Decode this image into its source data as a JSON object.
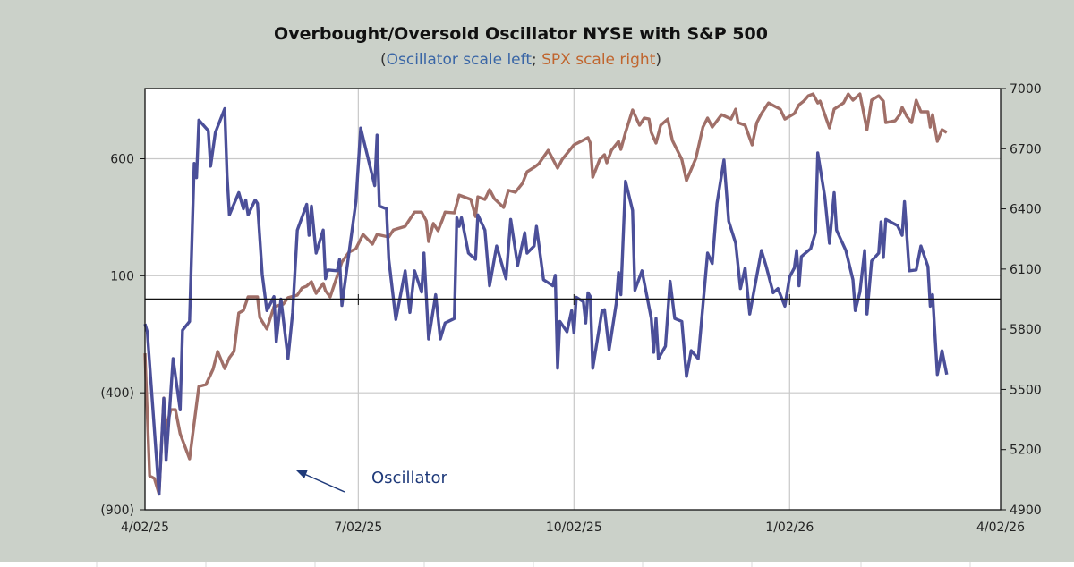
{
  "chart_data": {
    "type": "line",
    "title": "Overbought/Oversold Oscillator NYSE with S&P 500",
    "subtitle": {
      "open": "(",
      "left_part": "Oscillator scale left",
      "sep": "; ",
      "right_part": "SPX scale right",
      "close": ")"
    },
    "x_unit": "days since 4/02/25",
    "xlim": [
      0,
      365
    ],
    "x_ticks": [
      {
        "label": "4/02/25",
        "day": 0
      },
      {
        "label": "7/02/25",
        "day": 91
      },
      {
        "label": "10/02/25",
        "day": 183
      },
      {
        "label": "1/02/26",
        "day": 275
      },
      {
        "label": "4/02/26",
        "day": 365
      }
    ],
    "y_left": {
      "range": [
        -900,
        900
      ],
      "ticks": [
        600,
        100,
        -400,
        -900
      ],
      "tick_labels": [
        "600",
        "100",
        "(400)",
        "(900)"
      ],
      "zero_line": true
    },
    "y_right": {
      "range": [
        4900,
        7000
      ],
      "ticks": [
        7000,
        6700,
        6400,
        6100,
        5800,
        5500,
        5200,
        4900
      ],
      "tick_labels": [
        "7000",
        "6700",
        "6400",
        "6100",
        "5800",
        "5500",
        "5200",
        "4900"
      ]
    },
    "grid": true,
    "annotation": {
      "text": "Oscillator",
      "points_to": "oscillator series"
    },
    "series": [
      {
        "name": "Oscillator",
        "axis": "left",
        "color": "#4b4f99",
        "points": [
          [
            0,
            -106
          ],
          [
            1,
            -140
          ],
          [
            6,
            -833
          ],
          [
            8,
            -424
          ],
          [
            9,
            -689
          ],
          [
            12,
            -254
          ],
          [
            15,
            -473
          ],
          [
            16,
            -133
          ],
          [
            19,
            -95
          ],
          [
            21,
            580
          ],
          [
            22,
            519
          ],
          [
            23,
            765
          ],
          [
            27,
            720
          ],
          [
            28,
            568
          ],
          [
            30,
            712
          ],
          [
            34,
            814
          ],
          [
            35,
            530
          ],
          [
            36,
            360
          ],
          [
            40,
            455
          ],
          [
            42,
            386
          ],
          [
            43,
            424
          ],
          [
            44,
            360
          ],
          [
            47,
            424
          ],
          [
            48,
            409
          ],
          [
            50,
            106
          ],
          [
            52,
            -49
          ],
          [
            55,
            11
          ],
          [
            56,
            -182
          ],
          [
            58,
            0
          ],
          [
            61,
            -254
          ],
          [
            63,
            -57
          ],
          [
            65,
            295
          ],
          [
            69,
            405
          ],
          [
            70,
            273
          ],
          [
            71,
            398
          ],
          [
            73,
            197
          ],
          [
            76,
            295
          ],
          [
            77,
            87
          ],
          [
            78,
            125
          ],
          [
            82,
            121
          ],
          [
            83,
            170
          ],
          [
            84,
            -27
          ],
          [
            90,
            417
          ],
          [
            92,
            731
          ],
          [
            98,
            485
          ],
          [
            99,
            701
          ],
          [
            100,
            398
          ],
          [
            103,
            386
          ],
          [
            104,
            170
          ],
          [
            107,
            -87
          ],
          [
            111,
            121
          ],
          [
            113,
            -57
          ],
          [
            115,
            121
          ],
          [
            118,
            30
          ],
          [
            119,
            197
          ],
          [
            121,
            -170
          ],
          [
            124,
            19
          ],
          [
            126,
            -170
          ],
          [
            128,
            -102
          ],
          [
            132,
            -83
          ],
          [
            133,
            348
          ],
          [
            134,
            311
          ],
          [
            135,
            348
          ],
          [
            138,
            197
          ],
          [
            141,
            170
          ],
          [
            142,
            360
          ],
          [
            145,
            295
          ],
          [
            147,
            57
          ],
          [
            150,
            227
          ],
          [
            154,
            87
          ],
          [
            156,
            341
          ],
          [
            159,
            144
          ],
          [
            162,
            284
          ],
          [
            163,
            197
          ],
          [
            166,
            227
          ],
          [
            167,
            311
          ],
          [
            170,
            83
          ],
          [
            174,
            57
          ],
          [
            175,
            102
          ],
          [
            176,
            -295
          ],
          [
            177,
            -95
          ],
          [
            180,
            -140
          ],
          [
            182,
            -49
          ],
          [
            183,
            -144
          ],
          [
            184,
            8
          ],
          [
            187,
            -11
          ],
          [
            188,
            -102
          ],
          [
            189,
            27
          ],
          [
            190,
            11
          ],
          [
            191,
            -295
          ],
          [
            195,
            -49
          ],
          [
            196,
            -45
          ],
          [
            198,
            -216
          ],
          [
            201,
            -19
          ],
          [
            202,
            114
          ],
          [
            203,
            19
          ],
          [
            205,
            504
          ],
          [
            208,
            379
          ],
          [
            209,
            38
          ],
          [
            212,
            121
          ],
          [
            216,
            -83
          ],
          [
            217,
            -227
          ],
          [
            218,
            -83
          ],
          [
            219,
            -254
          ],
          [
            222,
            -201
          ],
          [
            224,
            76
          ],
          [
            226,
            -83
          ],
          [
            229,
            -95
          ],
          [
            231,
            -330
          ],
          [
            233,
            -220
          ],
          [
            236,
            -254
          ],
          [
            240,
            197
          ],
          [
            242,
            152
          ],
          [
            244,
            409
          ],
          [
            247,
            595
          ],
          [
            249,
            333
          ],
          [
            252,
            239
          ],
          [
            254,
            45
          ],
          [
            256,
            133
          ],
          [
            258,
            -64
          ],
          [
            263,
            208
          ],
          [
            265,
            140
          ],
          [
            268,
            27
          ],
          [
            270,
            45
          ],
          [
            273,
            -30
          ],
          [
            275,
            95
          ],
          [
            277,
            133
          ],
          [
            278,
            208
          ],
          [
            279,
            57
          ],
          [
            280,
            182
          ],
          [
            284,
            216
          ],
          [
            286,
            284
          ],
          [
            287,
            625
          ],
          [
            290,
            436
          ],
          [
            292,
            239
          ],
          [
            294,
            455
          ],
          [
            295,
            295
          ],
          [
            299,
            208
          ],
          [
            302,
            83
          ],
          [
            303,
            -49
          ],
          [
            305,
            30
          ],
          [
            307,
            208
          ],
          [
            308,
            -64
          ],
          [
            310,
            163
          ],
          [
            313,
            197
          ],
          [
            314,
            330
          ],
          [
            315,
            178
          ],
          [
            316,
            341
          ],
          [
            321,
            314
          ],
          [
            323,
            273
          ],
          [
            324,
            417
          ],
          [
            326,
            121
          ],
          [
            329,
            125
          ],
          [
            331,
            227
          ],
          [
            334,
            140
          ],
          [
            335,
            -30
          ],
          [
            336,
            19
          ],
          [
            338,
            -322
          ],
          [
            340,
            -220
          ],
          [
            342,
            -322
          ]
        ]
      },
      {
        "name": "SPX",
        "axis": "right",
        "color": "#a06f68",
        "points": [
          [
            0,
            5680
          ],
          [
            2,
            5069
          ],
          [
            4,
            5056
          ],
          [
            6,
            4980
          ],
          [
            8,
            5457
          ],
          [
            9,
            5301
          ],
          [
            11,
            5399
          ],
          [
            13,
            5399
          ],
          [
            15,
            5279
          ],
          [
            19,
            5154
          ],
          [
            23,
            5515
          ],
          [
            26,
            5524
          ],
          [
            29,
            5600
          ],
          [
            31,
            5689
          ],
          [
            34,
            5604
          ],
          [
            36,
            5658
          ],
          [
            38,
            5689
          ],
          [
            40,
            5881
          ],
          [
            42,
            5894
          ],
          [
            44,
            5961
          ],
          [
            48,
            5961
          ],
          [
            49,
            5858
          ],
          [
            52,
            5801
          ],
          [
            55,
            5912
          ],
          [
            59,
            5925
          ],
          [
            61,
            5957
          ],
          [
            65,
            5970
          ],
          [
            67,
            6006
          ],
          [
            69,
            6015
          ],
          [
            71,
            6037
          ],
          [
            73,
            5979
          ],
          [
            76,
            6028
          ],
          [
            77,
            5992
          ],
          [
            79,
            5961
          ],
          [
            84,
            6135
          ],
          [
            87,
            6184
          ],
          [
            90,
            6202
          ],
          [
            93,
            6273
          ],
          [
            97,
            6224
          ],
          [
            99,
            6273
          ],
          [
            104,
            6260
          ],
          [
            106,
            6295
          ],
          [
            111,
            6313
          ],
          [
            115,
            6384
          ],
          [
            118,
            6384
          ],
          [
            120,
            6340
          ],
          [
            121,
            6237
          ],
          [
            123,
            6327
          ],
          [
            125,
            6291
          ],
          [
            127,
            6349
          ],
          [
            128,
            6384
          ],
          [
            132,
            6380
          ],
          [
            134,
            6469
          ],
          [
            139,
            6447
          ],
          [
            141,
            6362
          ],
          [
            142,
            6460
          ],
          [
            145,
            6447
          ],
          [
            147,
            6496
          ],
          [
            149,
            6451
          ],
          [
            153,
            6407
          ],
          [
            155,
            6492
          ],
          [
            158,
            6483
          ],
          [
            161,
            6527
          ],
          [
            163,
            6585
          ],
          [
            166,
            6607
          ],
          [
            168,
            6625
          ],
          [
            172,
            6692
          ],
          [
            176,
            6603
          ],
          [
            178,
            6647
          ],
          [
            179,
            6661
          ],
          [
            183,
            6719
          ],
          [
            186,
            6737
          ],
          [
            189,
            6755
          ],
          [
            190,
            6728
          ],
          [
            191,
            6558
          ],
          [
            194,
            6647
          ],
          [
            196,
            6670
          ],
          [
            197,
            6630
          ],
          [
            199,
            6692
          ],
          [
            202,
            6737
          ],
          [
            203,
            6697
          ],
          [
            205,
            6781
          ],
          [
            208,
            6893
          ],
          [
            211,
            6817
          ],
          [
            213,
            6853
          ],
          [
            215,
            6848
          ],
          [
            216,
            6781
          ],
          [
            218,
            6728
          ],
          [
            220,
            6817
          ],
          [
            223,
            6848
          ],
          [
            225,
            6741
          ],
          [
            229,
            6647
          ],
          [
            231,
            6541
          ],
          [
            235,
            6652
          ],
          [
            238,
            6808
          ],
          [
            240,
            6853
          ],
          [
            242,
            6808
          ],
          [
            246,
            6870
          ],
          [
            250,
            6848
          ],
          [
            252,
            6897
          ],
          [
            253,
            6830
          ],
          [
            256,
            6817
          ],
          [
            259,
            6719
          ],
          [
            261,
            6830
          ],
          [
            263,
            6875
          ],
          [
            266,
            6928
          ],
          [
            271,
            6897
          ],
          [
            273,
            6848
          ],
          [
            277,
            6875
          ],
          [
            279,
            6919
          ],
          [
            281,
            6937
          ],
          [
            283,
            6964
          ],
          [
            285,
            6973
          ],
          [
            287,
            6928
          ],
          [
            288,
            6937
          ],
          [
            292,
            6804
          ],
          [
            294,
            6897
          ],
          [
            298,
            6928
          ],
          [
            300,
            6973
          ],
          [
            302,
            6942
          ],
          [
            305,
            6973
          ],
          [
            308,
            6795
          ],
          [
            310,
            6942
          ],
          [
            313,
            6964
          ],
          [
            315,
            6937
          ],
          [
            316,
            6830
          ],
          [
            320,
            6839
          ],
          [
            322,
            6870
          ],
          [
            323,
            6906
          ],
          [
            325,
            6861
          ],
          [
            327,
            6830
          ],
          [
            329,
            6942
          ],
          [
            331,
            6884
          ],
          [
            334,
            6884
          ],
          [
            335,
            6808
          ],
          [
            336,
            6870
          ],
          [
            338,
            6737
          ],
          [
            340,
            6795
          ],
          [
            342,
            6781
          ]
        ]
      }
    ]
  },
  "colors": {
    "subtitle_left": "#3a66a6",
    "subtitle_right": "#c0652e",
    "paren": "#333333",
    "annotation": "#1f3a7a"
  }
}
